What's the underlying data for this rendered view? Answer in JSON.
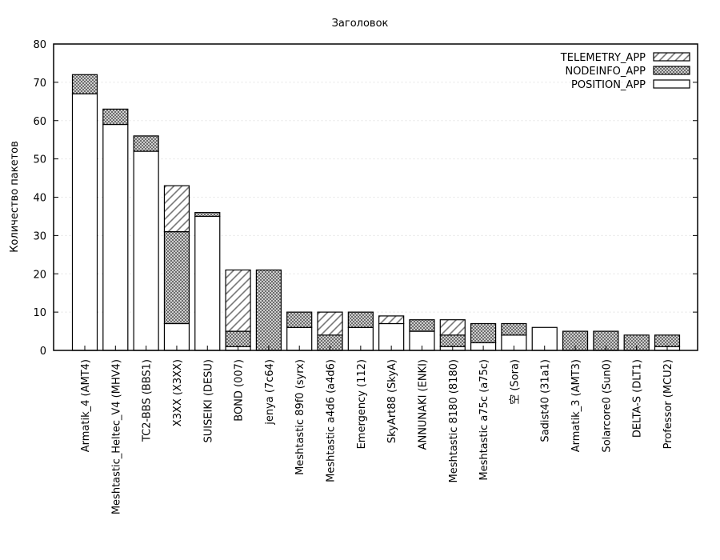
{
  "chart_data": {
    "type": "bar",
    "stacked": true,
    "title": "Заголовок",
    "xlabel": "",
    "ylabel": "Количество пакетов",
    "ylim": [
      0,
      80
    ],
    "yticks": [
      0,
      10,
      20,
      30,
      40,
      50,
      60,
      70,
      80
    ],
    "grid": "horizontal dotted",
    "legend_position": "top-right",
    "categories": [
      "Armatik_4 (AMT4)",
      "Meshtastic_Heltec_V4 (MHV4)",
      "TC2-BBS (BBS1)",
      "X3XX (X3XX)",
      "SUISEIKI (DESU)",
      "BOND (007)",
      "jenya (7c64)",
      "Meshtastic 89f0 (syrx)",
      "Meshtastic a4d6 (a4d6)",
      "Emergency (112)",
      "SkyArt88 (SkyA)",
      "ANNUNAKI (ENKI)",
      "Meshtastic 8180 (8180)",
      "Meshtastic a75c (a75c)",
      "空 (Sora)",
      "Sadist40 (31a1)",
      "Armatik_3 (AMT3)",
      "Solarcore0 (Sun0)",
      "DELTA-S (DLT1)",
      "Professor (MCU2)"
    ],
    "series": [
      {
        "name": "POSITION_APP",
        "pattern": "empty",
        "values": [
          67,
          59,
          52,
          7,
          35,
          1,
          0,
          6,
          0,
          6,
          7,
          5,
          1,
          2,
          4,
          6,
          0,
          0,
          0,
          1
        ]
      },
      {
        "name": "NODEINFO_APP",
        "pattern": "crosshatch",
        "values": [
          5,
          4,
          4,
          24,
          1,
          4,
          21,
          4,
          4,
          4,
          0,
          3,
          3,
          5,
          3,
          0,
          5,
          5,
          4,
          3
        ]
      },
      {
        "name": "TELEMETRY_APP",
        "pattern": "diagonal",
        "values": [
          0,
          0,
          0,
          12,
          0,
          16,
          0,
          0,
          6,
          0,
          2,
          0,
          4,
          0,
          0,
          0,
          0,
          0,
          0,
          0
        ]
      }
    ],
    "legend_order": [
      "TELEMETRY_APP",
      "NODEINFO_APP",
      "POSITION_APP"
    ]
  }
}
